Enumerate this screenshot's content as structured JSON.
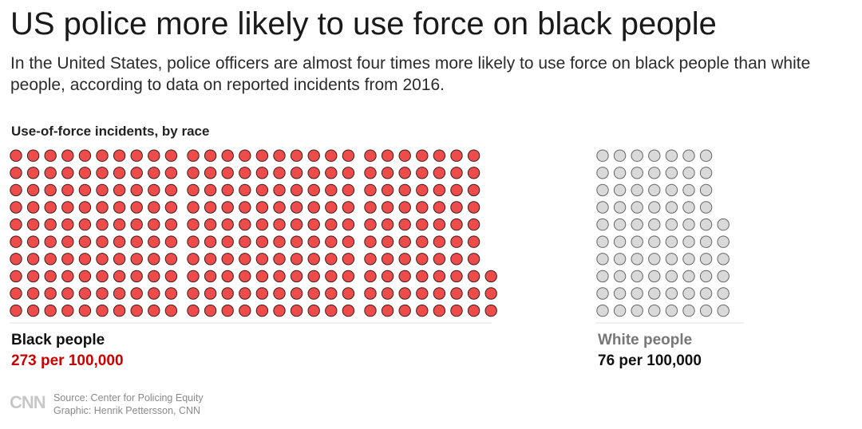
{
  "title": "US police more likely to use force on black people",
  "subtitle": "In the United States, police officers are almost four times more likely to use force on black people than white people, according to data on reported incidents from 2016.",
  "section_label": "Use-of-force incidents, by race",
  "groups": {
    "black": {
      "name": "Black people",
      "rate": "273 per 100,000",
      "name_color": "#111111",
      "rate_color": "#cc0000"
    },
    "white": {
      "name": "White people",
      "rate": "76 per 100,000",
      "name_color": "#777777",
      "rate_color": "#111111"
    }
  },
  "source": "Source: Center for Policing Equity",
  "graphic": "Graphic: Henrik Pettersson, CNN",
  "logo_text": "CNN",
  "colors": {
    "black_dot_fill": "#ee4b4b",
    "black_dot_stroke": "#3a1f1f",
    "white_dot_fill": "#d9d9d9",
    "white_dot_stroke": "#666666"
  },
  "chart_data": {
    "type": "pictogram",
    "unit": "1 dot = 1 incident per 100,000 people",
    "title": "Use-of-force incidents, by race",
    "series": [
      {
        "name": "Black people",
        "value": 273
      },
      {
        "name": "White people",
        "value": 76
      }
    ]
  }
}
